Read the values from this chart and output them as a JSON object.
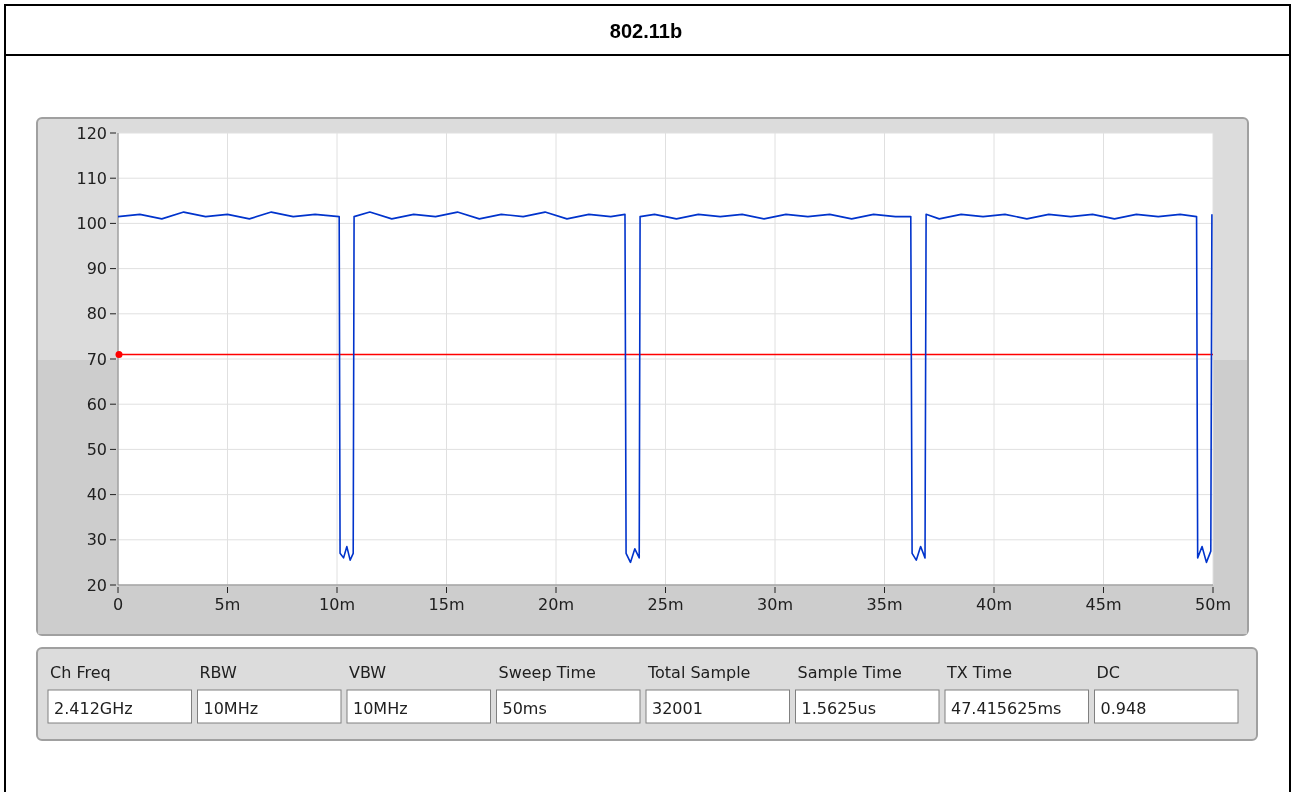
{
  "chart_data": [
    {
      "type": "line",
      "title": "802.11b",
      "color": "#0033cc",
      "marker": "none",
      "line_style": "solid",
      "grid": true,
      "x": [
        0,
        1,
        2,
        3,
        4,
        5,
        6,
        7,
        8,
        9,
        10.1,
        10.14,
        10.3,
        10.45,
        10.6,
        10.74,
        10.78,
        11.5,
        12.5,
        13.5,
        14.5,
        15.5,
        16.5,
        17.5,
        18.5,
        19.5,
        20.5,
        21.5,
        22.5,
        23.15,
        23.2,
        23.4,
        23.6,
        23.8,
        23.84,
        24.5,
        25.5,
        26.5,
        27.5,
        28.5,
        29.5,
        30.5,
        31.5,
        32.5,
        33.5,
        34.5,
        35.5,
        36.2,
        36.26,
        36.45,
        36.65,
        36.85,
        36.9,
        37.5,
        38.5,
        39.5,
        40.5,
        41.5,
        42.5,
        43.5,
        44.5,
        45.5,
        46.5,
        47.5,
        48.5,
        49.25,
        49.3,
        49.5,
        49.7,
        49.9,
        49.95
      ],
      "values": [
        101.5,
        102,
        101,
        102.5,
        101.5,
        102,
        101,
        102.5,
        101.5,
        102,
        101.5,
        27,
        26,
        28.5,
        25.5,
        27,
        101.5,
        102.5,
        101,
        102,
        101.5,
        102.5,
        101,
        102,
        101.5,
        102.5,
        101,
        102,
        101.5,
        102,
        27,
        25,
        28,
        26,
        101.5,
        102,
        101,
        102,
        101.5,
        102,
        101,
        102,
        101.5,
        102,
        101,
        102,
        101.5,
        101.5,
        27,
        25.5,
        28.5,
        26,
        102,
        101,
        102,
        101.5,
        102,
        101,
        102,
        101.5,
        102,
        101,
        102,
        101.5,
        102,
        101.5,
        26,
        28.5,
        25,
        27.5,
        102
      ],
      "xlim": [
        0,
        50
      ],
      "xticks": [
        0,
        {
          "value": 5,
          "label": "5m"
        },
        {
          "value": 10,
          "label": "10m"
        },
        {
          "value": 15,
          "label": "15m"
        },
        {
          "value": 20,
          "label": "20m"
        },
        {
          "value": 25,
          "label": "25m"
        },
        {
          "value": 30,
          "label": "30m"
        },
        {
          "value": 35,
          "label": "35m"
        },
        {
          "value": 40,
          "label": "40m"
        },
        {
          "value": 45,
          "label": "45m"
        },
        {
          "value": 50,
          "label": "50m"
        }
      ],
      "ylim": [
        20,
        120
      ],
      "yticks": [
        20,
        30,
        40,
        50,
        60,
        70,
        80,
        90,
        100,
        110,
        120
      ],
      "ref_lines": [
        {
          "axis": "y",
          "value": 71,
          "color": "#ff0000"
        }
      ]
    },
    {
      "type": "other",
      "annotations": [
        "Ch Freq",
        "2.412GHz",
        "RBW",
        "10MHz",
        "VBW",
        "10MHz",
        "Sweep Time",
        "50ms",
        "Total Sample",
        "32001",
        "Sample Time",
        "1.5625us",
        "TX Time",
        "47.415625ms",
        "DC",
        "0.948"
      ]
    }
  ]
}
